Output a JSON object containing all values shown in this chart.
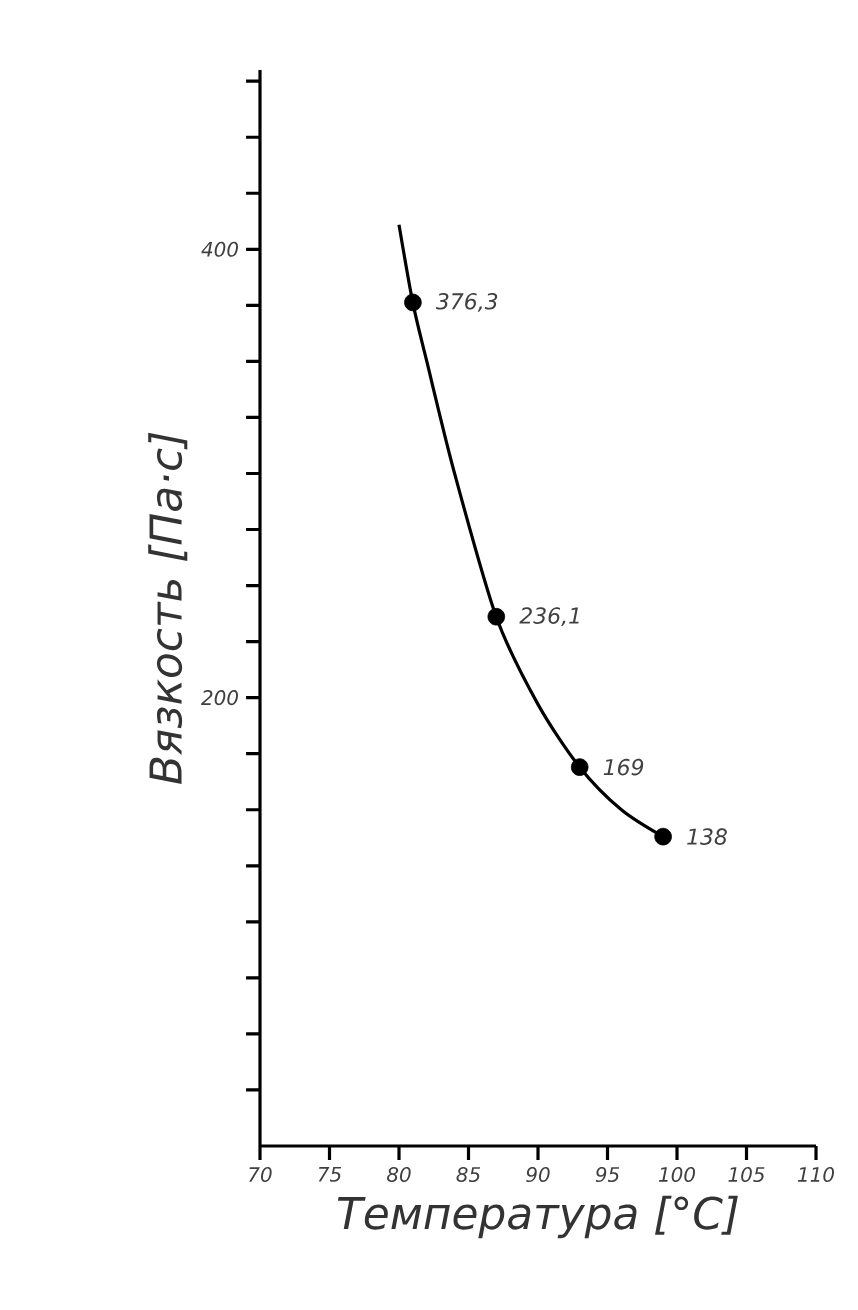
{
  "chart_data": {
    "type": "scatter",
    "xlabel": "Температура [°C]",
    "ylabel": "Вязкость [Па·с]",
    "xlim": [
      70,
      110
    ],
    "ylim": [
      0,
      480
    ],
    "xticks": [
      70,
      75,
      80,
      85,
      90,
      95,
      100,
      105,
      110
    ],
    "yticks": [
      {
        "value": 25,
        "label": null
      },
      {
        "value": 50,
        "label": null
      },
      {
        "value": 75,
        "label": null
      },
      {
        "value": 100,
        "label": null
      },
      {
        "value": 125,
        "label": null
      },
      {
        "value": 150,
        "label": null
      },
      {
        "value": 175,
        "label": null
      },
      200,
      {
        "value": 225,
        "label": null
      },
      {
        "value": 250,
        "label": null
      },
      {
        "value": 275,
        "label": null
      },
      {
        "value": 300,
        "label": null
      },
      {
        "value": 325,
        "label": null
      },
      {
        "value": 350,
        "label": null
      },
      {
        "value": 375,
        "label": null
      },
      400,
      {
        "value": 425,
        "label": null
      },
      {
        "value": 450,
        "label": null
      },
      {
        "value": 475,
        "label": null
      }
    ],
    "grid": false,
    "series": [
      {
        "type": "line",
        "color": "#000000",
        "marker": "none",
        "line_style": "solid",
        "x": [
          80,
          81,
          82,
          84,
          87,
          90,
          93,
          96,
          99
        ],
        "values": [
          411,
          376,
          350,
          300,
          236,
          197,
          169,
          150,
          138
        ]
      },
      {
        "color": "#000000",
        "marker": "circle",
        "x": [
          81,
          87,
          93,
          99
        ],
        "values": [
          376.3,
          236.1,
          169,
          138
        ],
        "value_labels": [
          "376,3",
          "236,1",
          "169",
          "138"
        ]
      }
    ]
  }
}
